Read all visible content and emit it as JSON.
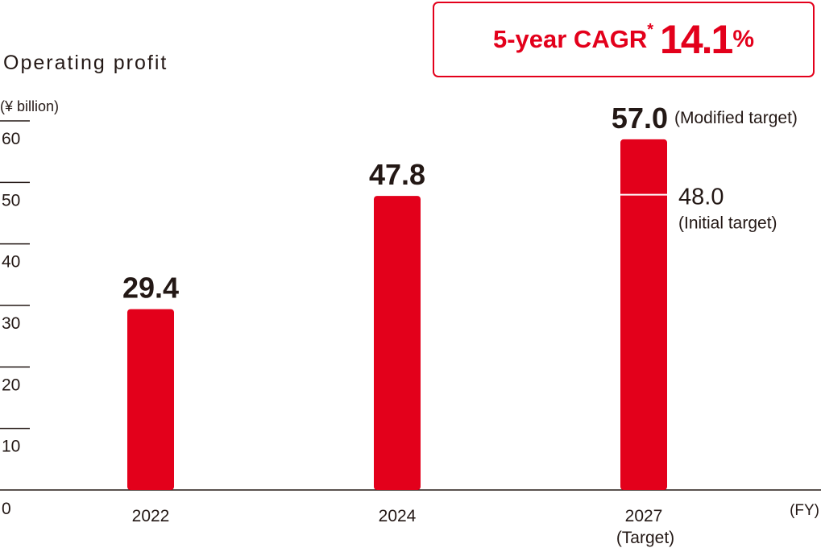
{
  "chart_data": {
    "type": "bar",
    "title": "Operating profit",
    "unit_label": "(¥ billion)",
    "x_unit_label": "(FY)",
    "categories": [
      "2022",
      "2024",
      "2027"
    ],
    "category_sublabels": [
      "",
      "",
      "(Target)"
    ],
    "values": [
      29.4,
      47.8,
      57.0
    ],
    "value_labels": [
      "29.4",
      "47.8",
      "57.0"
    ],
    "value_label_notes": [
      "",
      "",
      "(Modified target)"
    ],
    "ylim": [
      0,
      60
    ],
    "yticks": [
      0,
      10,
      20,
      30,
      40,
      50,
      60
    ],
    "initial_target": {
      "value": 48.0,
      "label": "48.0",
      "note": "(Initial target)"
    },
    "bar_color": "#e3001b"
  },
  "cagr": {
    "label": "5-year CAGR",
    "asterisk": "*",
    "value": "14.1",
    "unit": "%",
    "color": "#e3001b"
  }
}
